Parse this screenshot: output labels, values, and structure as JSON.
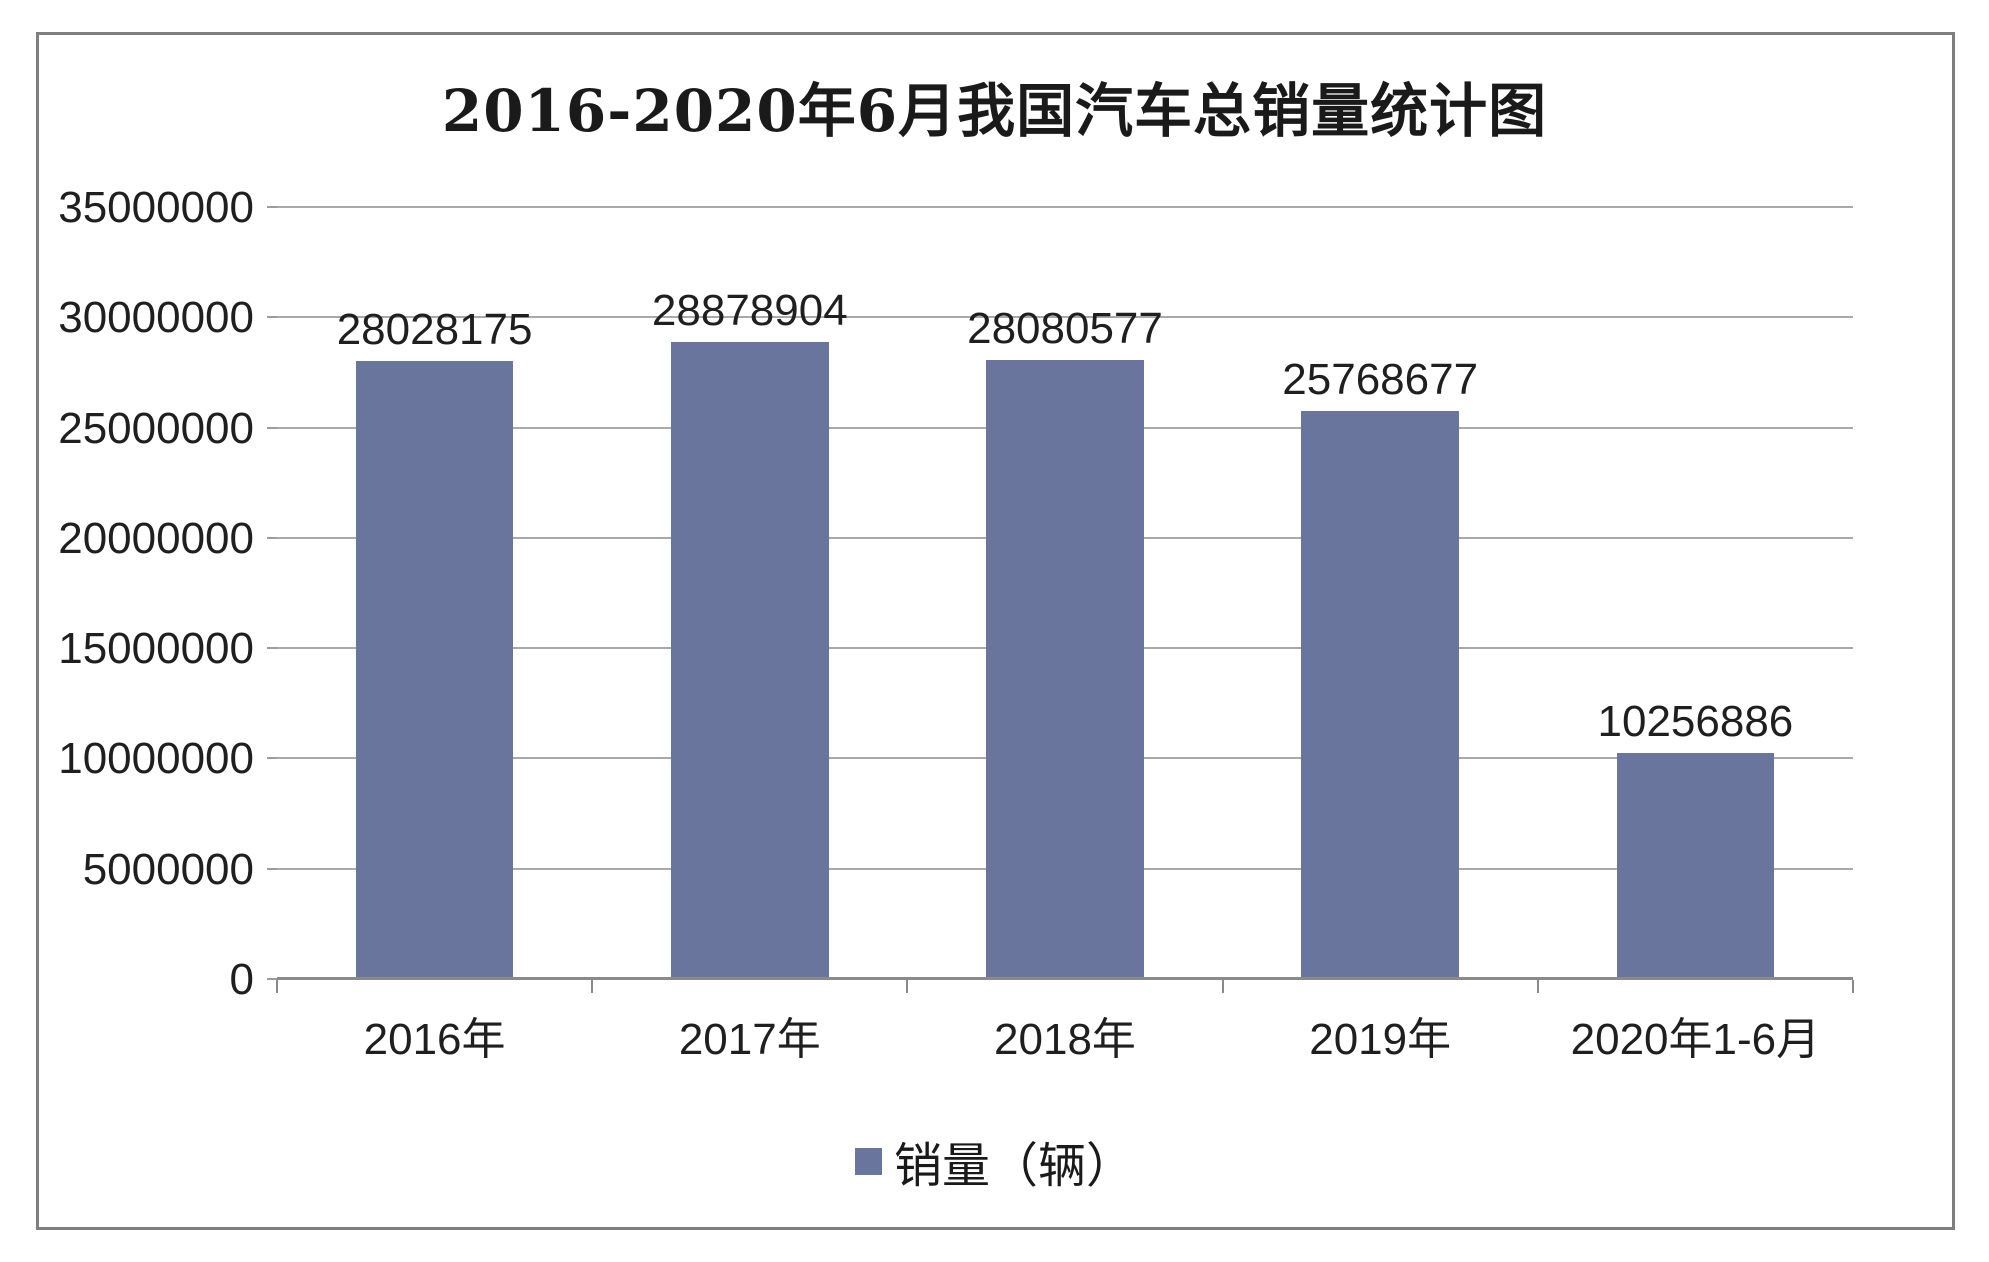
{
  "chart_data": {
    "type": "bar",
    "title": "2016-2020年6月我国汽车总销量统计图",
    "categories": [
      "2016年",
      "2017年",
      "2018年",
      "2019年",
      "2020年1-6月"
    ],
    "series": [
      {
        "name": "销量（辆）",
        "values": [
          28028175,
          28878904,
          28080577,
          25768677,
          10256886
        ]
      }
    ],
    "data_labels": [
      "28028175",
      "28878904",
      "28080577",
      "25768677",
      "10256886"
    ],
    "ylim": [
      0,
      35000000
    ],
    "yticks": [
      0,
      5000000,
      10000000,
      15000000,
      20000000,
      25000000,
      30000000,
      35000000
    ],
    "ytick_labels": [
      "0",
      "5000000",
      "10000000",
      "15000000",
      "20000000",
      "25000000",
      "30000000",
      "35000000"
    ],
    "xlabel": "",
    "ylabel": "",
    "grid": "horizontal",
    "legend_position": "bottom"
  },
  "colors": {
    "bar": "#69759d",
    "gridline": "#a9a9a9",
    "axis_line": "#8a8a8a",
    "tick": "#9b9b9b",
    "frame_border": "#7f7f7f",
    "text": "#1f1f1f"
  }
}
